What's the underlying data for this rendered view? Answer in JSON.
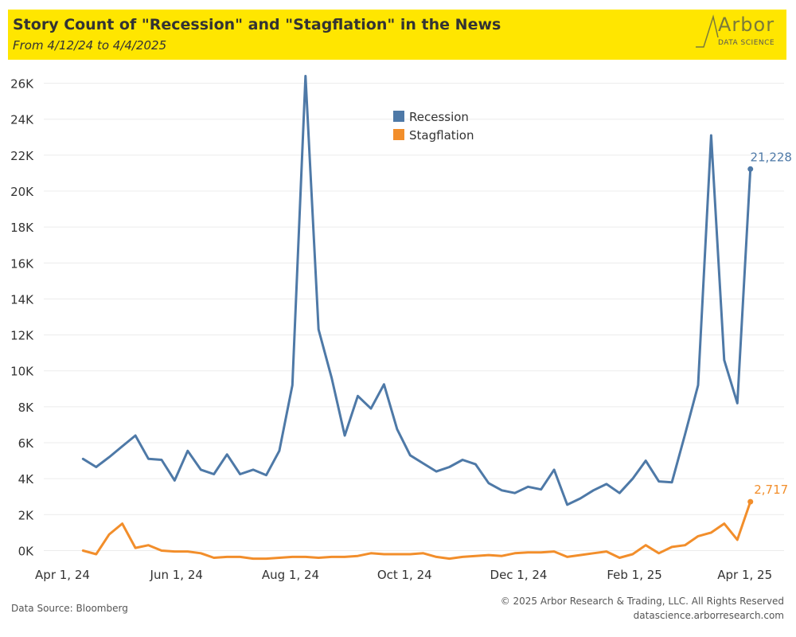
{
  "header": {
    "title": "Story Count of \"Recession\" and \"Stagflation\" in the News",
    "subtitle": "From 4/12/24 to 4/4/2025",
    "logo_word": "Arbor",
    "logo_sub": "DATA SCIENCE"
  },
  "footer": {
    "source": "Data Source: Bloomberg",
    "copyright": "© 2025 Arbor Research & Trading, LLC. All Rights Reserved",
    "url": "datascience.arborresearch.com"
  },
  "colors": {
    "banner": "#ffe600",
    "recession": "#4e79a7",
    "stagflation": "#f28e2b"
  },
  "chart_data": {
    "type": "line",
    "ylim": [
      -600,
      27000
    ],
    "y_ticks": [
      0,
      2000,
      4000,
      6000,
      8000,
      10000,
      12000,
      14000,
      16000,
      18000,
      20000,
      22000,
      24000,
      26000
    ],
    "y_tick_labels": [
      "0K",
      "2K",
      "4K",
      "6K",
      "8K",
      "10K",
      "12K",
      "14K",
      "16K",
      "18K",
      "20K",
      "22K",
      "24K",
      "26K"
    ],
    "x_ticks": [
      "2024-04-01",
      "2024-06-01",
      "2024-08-01",
      "2024-10-01",
      "2024-12-01",
      "2025-02-01",
      "2025-04-01"
    ],
    "x_tick_labels": [
      "Apr 1, 24",
      "Jun 1, 24",
      "Aug 1, 24",
      "Oct 1, 24",
      "Dec 1, 24",
      "Feb 1, 25",
      "Apr 1, 25"
    ],
    "xlim": [
      "2024-03-22",
      "2025-04-22"
    ],
    "grid": "horizontal",
    "legend_position": "top-center",
    "x": [
      "2024-04-12",
      "2024-04-19",
      "2024-04-26",
      "2024-05-03",
      "2024-05-10",
      "2024-05-17",
      "2024-05-24",
      "2024-05-31",
      "2024-06-07",
      "2024-06-14",
      "2024-06-21",
      "2024-06-28",
      "2024-07-05",
      "2024-07-12",
      "2024-07-19",
      "2024-07-26",
      "2024-08-02",
      "2024-08-09",
      "2024-08-16",
      "2024-08-23",
      "2024-08-30",
      "2024-09-06",
      "2024-09-13",
      "2024-09-20",
      "2024-09-27",
      "2024-10-04",
      "2024-10-11",
      "2024-10-18",
      "2024-10-25",
      "2024-11-01",
      "2024-11-08",
      "2024-11-15",
      "2024-11-22",
      "2024-11-29",
      "2024-12-06",
      "2024-12-13",
      "2024-12-20",
      "2024-12-27",
      "2025-01-03",
      "2025-01-10",
      "2025-01-17",
      "2025-01-24",
      "2025-01-31",
      "2025-02-07",
      "2025-02-14",
      "2025-02-21",
      "2025-02-28",
      "2025-03-07",
      "2025-03-14",
      "2025-03-21",
      "2025-03-28",
      "2025-04-04"
    ],
    "series": [
      {
        "name": "Recession",
        "values": [
          5100,
          4650,
          5200,
          5800,
          6400,
          5100,
          5050,
          3900,
          5550,
          4500,
          4250,
          5350,
          4250,
          4500,
          4200,
          5550,
          9200,
          26400,
          12300,
          9600,
          6400,
          8600,
          7900,
          9250,
          6750,
          5300,
          4850,
          4400,
          4650,
          5050,
          4800,
          3750,
          3350,
          3200,
          3550,
          3400,
          4500,
          2550,
          2900,
          3350,
          3700,
          3200,
          4000,
          5000,
          3850,
          3800,
          6450,
          9200,
          23100,
          10600,
          8200,
          21228
        ],
        "end_label": "21,228"
      },
      {
        "name": "Stagflation",
        "values": [
          0,
          -200,
          900,
          1500,
          150,
          300,
          0,
          -50,
          -50,
          -150,
          -400,
          -350,
          -350,
          -450,
          -450,
          -400,
          -350,
          -350,
          -400,
          -350,
          -350,
          -300,
          -150,
          -200,
          -200,
          -200,
          -150,
          -350,
          -450,
          -350,
          -300,
          -250,
          -300,
          -150,
          -100,
          -100,
          -50,
          -350,
          -250,
          -150,
          -50,
          -400,
          -200,
          300,
          -150,
          200,
          300,
          800,
          1000,
          1500,
          600,
          2717
        ],
        "end_label": "2,717"
      }
    ]
  }
}
